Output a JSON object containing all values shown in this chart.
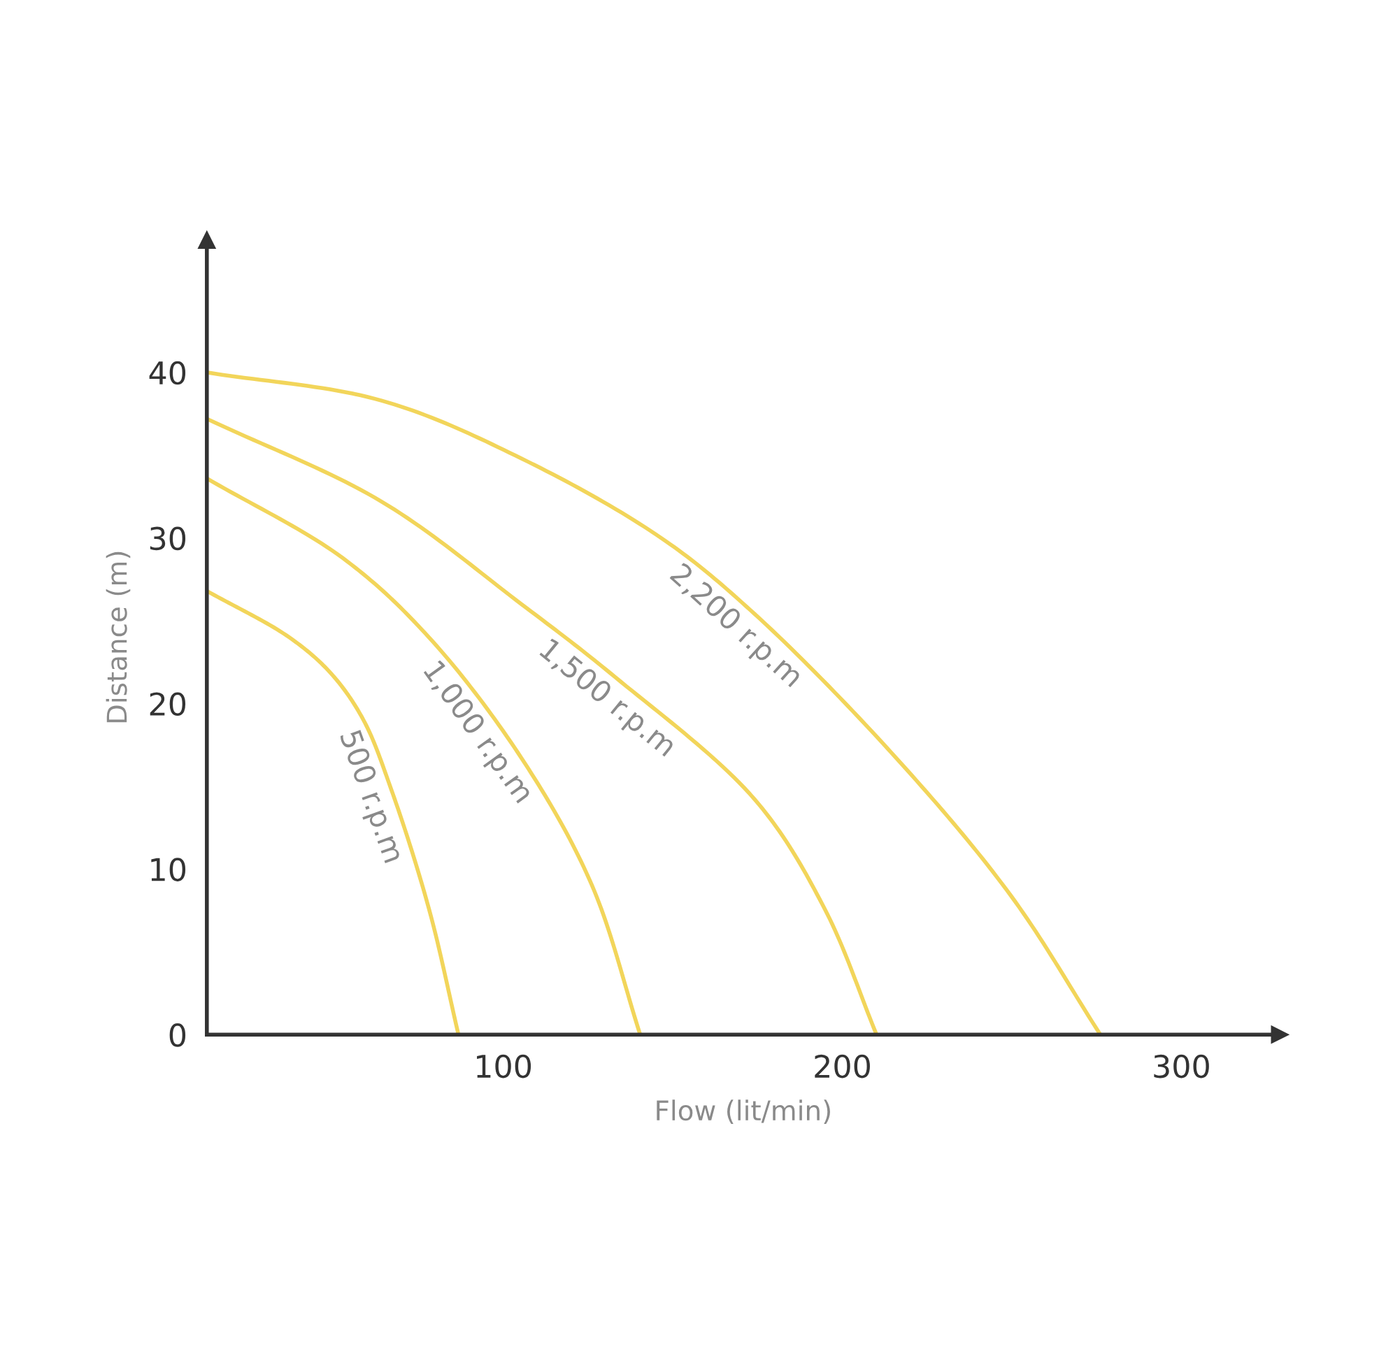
{
  "chart_data": {
    "type": "line",
    "xlabel": "Flow (lit/min)",
    "ylabel": "Distance (m)",
    "xlim": [
      12.6,
      329
    ],
    "ylim": [
      0,
      48
    ],
    "xticks": [
      100,
      200,
      300
    ],
    "yticks": [
      0,
      10,
      20,
      30,
      40
    ],
    "grid": false,
    "marker": "none",
    "line_style": "solid",
    "series": [
      {
        "name": "500 r.p.m",
        "color": "#f2d55a",
        "x": [
          12.6,
          36.9,
          49.3,
          58.8,
          67.0,
          78.1,
          86.8
        ],
        "values": [
          26.8,
          24.0,
          21.8,
          19.0,
          14.8,
          7.6,
          0
        ]
      },
      {
        "name": "1,000 r.p.m",
        "color": "#f2d55a",
        "x": [
          12.6,
          52.6,
          78.1,
          105.4,
          126.0,
          140.4
        ],
        "values": [
          33.6,
          28.8,
          24.0,
          16.7,
          9.1,
          0
        ]
      },
      {
        "name": "1,500 r.p.m",
        "color": "#f2d55a",
        "x": [
          12.6,
          64.1,
          105.4,
          133.0,
          174.2,
          194.8,
          210.1
        ],
        "values": [
          37.2,
          32.2,
          26.0,
          21.6,
          14.2,
          7.6,
          0
        ]
      },
      {
        "name": "2,200 r.p.m",
        "color": "#f2d55a",
        "x": [
          12.6,
          64.1,
          105.4,
          146.6,
          174.2,
          215.5,
          249.7,
          276.1
        ],
        "values": [
          40,
          38.3,
          34.8,
          30.0,
          25.4,
          16.8,
          8.4,
          0
        ]
      }
    ]
  }
}
